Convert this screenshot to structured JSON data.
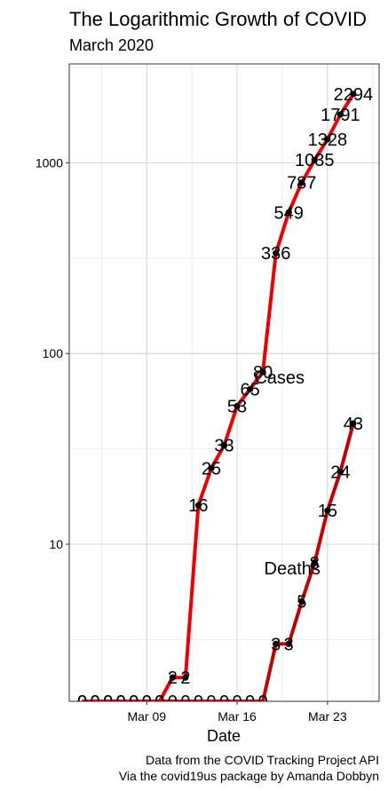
{
  "chart_data": {
    "type": "line",
    "title": "The Logarithmic Growth of COVID",
    "subtitle": "March 2020",
    "xlabel": "Date",
    "ylabel": "",
    "caption": [
      "Data from the COVID Tracking Project API",
      "Via the covid19us package by Amanda Dobbyn"
    ],
    "y_scale": "log10",
    "ylim": [
      1.5,
      3300
    ],
    "xlim": [
      "2020-03-03",
      "2020-03-27"
    ],
    "x_ticks": [
      {
        "date": "2020-03-09",
        "label": "Mar 09"
      },
      {
        "date": "2020-03-16",
        "label": "Mar 16"
      },
      {
        "date": "2020-03-23",
        "label": "Mar 23"
      }
    ],
    "y_ticks": [
      {
        "value": 10,
        "label": "10"
      },
      {
        "value": 100,
        "label": "100"
      },
      {
        "value": 1000,
        "label": "1000"
      }
    ],
    "grid": true,
    "series": [
      {
        "name": "Cases",
        "color": "#ee0000",
        "label_anchor": {
          "date": "2020-03-19",
          "value": 75
        },
        "points": [
          {
            "date": "2020-03-04",
            "value": 0,
            "label": "0"
          },
          {
            "date": "2020-03-05",
            "value": 0,
            "label": "0"
          },
          {
            "date": "2020-03-06",
            "value": 0,
            "label": "0"
          },
          {
            "date": "2020-03-07",
            "value": 0,
            "label": "0"
          },
          {
            "date": "2020-03-08",
            "value": 0,
            "label": "0"
          },
          {
            "date": "2020-03-09",
            "value": 0,
            "label": "0"
          },
          {
            "date": "2020-03-10",
            "value": 0,
            "label": "0"
          },
          {
            "date": "2020-03-11",
            "value": 2,
            "label": "2"
          },
          {
            "date": "2020-03-12",
            "value": 2,
            "label": "2"
          },
          {
            "date": "2020-03-13",
            "value": 16,
            "label": "16"
          },
          {
            "date": "2020-03-14",
            "value": 25,
            "label": "25"
          },
          {
            "date": "2020-03-15",
            "value": 33,
            "label": "33"
          },
          {
            "date": "2020-03-16",
            "value": 53,
            "label": "53"
          },
          {
            "date": "2020-03-17",
            "value": 65,
            "label": "65"
          },
          {
            "date": "2020-03-18",
            "value": 80,
            "label": "80"
          },
          {
            "date": "2020-03-19",
            "value": 336,
            "label": "336"
          },
          {
            "date": "2020-03-20",
            "value": 549,
            "label": "549"
          },
          {
            "date": "2020-03-21",
            "value": 787,
            "label": "787"
          },
          {
            "date": "2020-03-22",
            "value": 1035,
            "label": "1035"
          },
          {
            "date": "2020-03-23",
            "value": 1328,
            "label": "1328"
          },
          {
            "date": "2020-03-24",
            "value": 1791,
            "label": "1791"
          },
          {
            "date": "2020-03-25",
            "value": 2294,
            "label": "2294"
          }
        ]
      },
      {
        "name": "Deaths",
        "color": "#c40000",
        "label_anchor": {
          "date": "2020-03-20",
          "value": 7.5
        },
        "points": [
          {
            "date": "2020-03-04",
            "value": 0,
            "label": "0"
          },
          {
            "date": "2020-03-05",
            "value": 0,
            "label": "0"
          },
          {
            "date": "2020-03-06",
            "value": 0,
            "label": "0"
          },
          {
            "date": "2020-03-07",
            "value": 0,
            "label": "0"
          },
          {
            "date": "2020-03-08",
            "value": 0,
            "label": "0"
          },
          {
            "date": "2020-03-09",
            "value": 0,
            "label": "0"
          },
          {
            "date": "2020-03-10",
            "value": 0,
            "label": "0"
          },
          {
            "date": "2020-03-11",
            "value": 0,
            "label": "0"
          },
          {
            "date": "2020-03-12",
            "value": 0,
            "label": "0"
          },
          {
            "date": "2020-03-13",
            "value": 0,
            "label": "0"
          },
          {
            "date": "2020-03-14",
            "value": 0,
            "label": "0"
          },
          {
            "date": "2020-03-15",
            "value": 0,
            "label": "0"
          },
          {
            "date": "2020-03-16",
            "value": 0,
            "label": "0"
          },
          {
            "date": "2020-03-17",
            "value": 0,
            "label": "0"
          },
          {
            "date": "2020-03-18",
            "value": 0,
            "label": "0"
          },
          {
            "date": "2020-03-19",
            "value": 3,
            "label": "3"
          },
          {
            "date": "2020-03-20",
            "value": 3,
            "label": "3"
          },
          {
            "date": "2020-03-21",
            "value": 5,
            "label": "5"
          },
          {
            "date": "2020-03-22",
            "value": 8,
            "label": "8"
          },
          {
            "date": "2020-03-23",
            "value": 15,
            "label": "15"
          },
          {
            "date": "2020-03-24",
            "value": 24,
            "label": "24"
          },
          {
            "date": "2020-03-25",
            "value": 43,
            "label": "43"
          }
        ]
      }
    ]
  }
}
